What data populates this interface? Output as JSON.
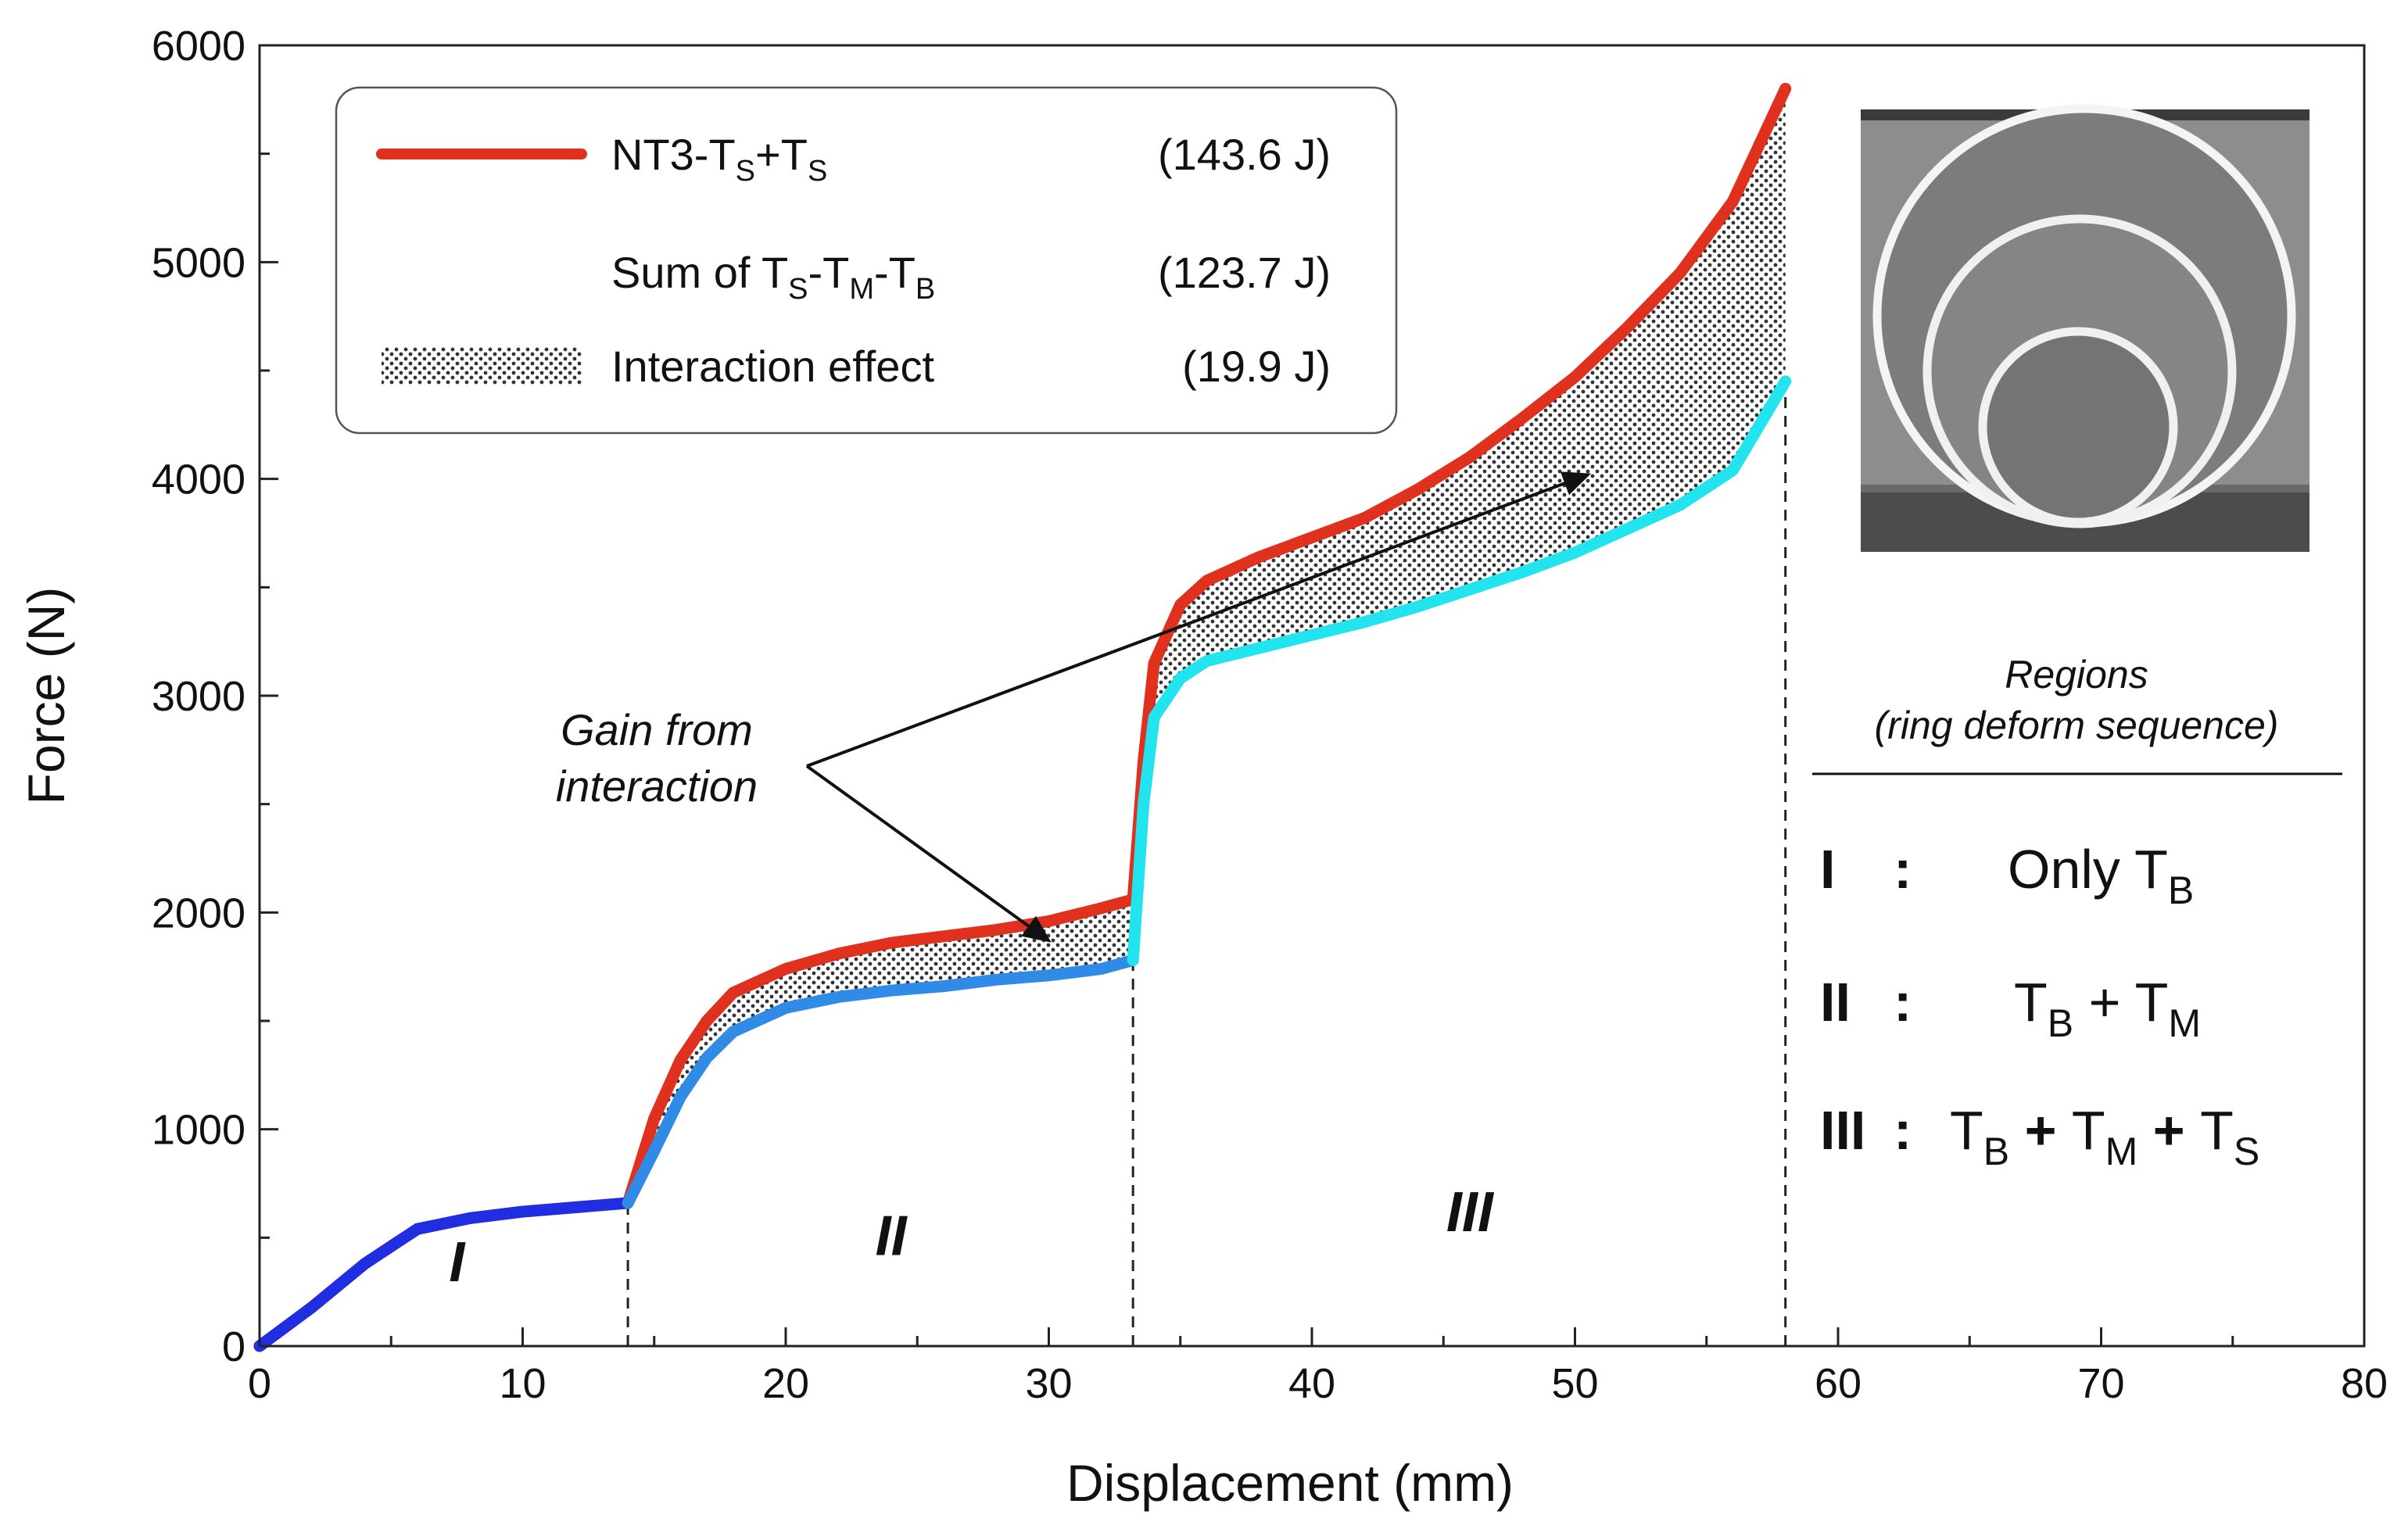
{
  "chart_data": {
    "type": "line",
    "xlabel": "Displacement (mm)",
    "ylabel": "Force (N)",
    "xlim": [
      0,
      80
    ],
    "ylim": [
      0,
      6000
    ],
    "x_ticks": [
      0,
      10,
      20,
      30,
      40,
      50,
      60,
      70,
      80
    ],
    "y_ticks": [
      0,
      1000,
      2000,
      3000,
      4000,
      5000,
      6000
    ],
    "grid": false,
    "legend_position": "top-left",
    "legend": [
      {
        "key": "nt3",
        "name_main": "NT3-T",
        "name_sub1": "S",
        "name_mid": "+T",
        "name_sub2": "S",
        "energy": "(143.6 J)"
      },
      {
        "key": "sum",
        "name_main": "Sum of T",
        "name_sub1": "S",
        "name_mid1": "-T",
        "name_sub2": "M",
        "name_mid2": "-T",
        "name_sub3": "B",
        "energy": "(123.7 J)"
      },
      {
        "key": "interaction",
        "name": "Interaction effect",
        "energy": "(19.9 J)"
      }
    ],
    "colors": {
      "nt3": "#e0301e",
      "sum_region1": "#1f2ee0",
      "sum_region2": "#2f8be6",
      "sum_region3": "#22e4ee",
      "fill": "#9a9a9a"
    },
    "series": [
      {
        "name": "NT3-TS+TS",
        "color": "#e0301e",
        "points": [
          [
            0,
            0
          ],
          [
            2,
            180
          ],
          [
            4,
            380
          ],
          [
            6,
            540
          ],
          [
            8,
            590
          ],
          [
            10,
            620
          ],
          [
            12,
            640
          ],
          [
            14,
            660
          ],
          [
            15,
            1050
          ],
          [
            16,
            1320
          ],
          [
            17,
            1500
          ],
          [
            18,
            1630
          ],
          [
            20,
            1740
          ],
          [
            22,
            1810
          ],
          [
            24,
            1860
          ],
          [
            26,
            1890
          ],
          [
            28,
            1920
          ],
          [
            30,
            1960
          ],
          [
            32,
            2020
          ],
          [
            33.2,
            2060
          ],
          [
            33.6,
            2700
          ],
          [
            34,
            3150
          ],
          [
            35,
            3420
          ],
          [
            36,
            3530
          ],
          [
            38,
            3640
          ],
          [
            40,
            3730
          ],
          [
            42,
            3820
          ],
          [
            44,
            3950
          ],
          [
            46,
            4100
          ],
          [
            48,
            4280
          ],
          [
            50,
            4470
          ],
          [
            52,
            4700
          ],
          [
            54,
            4950
          ],
          [
            56,
            5280
          ],
          [
            58,
            5800
          ]
        ]
      },
      {
        "name": "Sum of TS-TM-TB",
        "points": [
          [
            0,
            0
          ],
          [
            2,
            180
          ],
          [
            4,
            380
          ],
          [
            6,
            540
          ],
          [
            8,
            590
          ],
          [
            10,
            620
          ],
          [
            12,
            640
          ],
          [
            14,
            660
          ],
          [
            15,
            900
          ],
          [
            16,
            1150
          ],
          [
            17,
            1330
          ],
          [
            18,
            1450
          ],
          [
            20,
            1560
          ],
          [
            22,
            1610
          ],
          [
            24,
            1640
          ],
          [
            26,
            1660
          ],
          [
            28,
            1690
          ],
          [
            30,
            1710
          ],
          [
            32,
            1740
          ],
          [
            33.2,
            1780
          ],
          [
            33.6,
            2500
          ],
          [
            34,
            2900
          ],
          [
            35,
            3080
          ],
          [
            36,
            3160
          ],
          [
            38,
            3220
          ],
          [
            40,
            3280
          ],
          [
            42,
            3340
          ],
          [
            44,
            3410
          ],
          [
            46,
            3490
          ],
          [
            48,
            3570
          ],
          [
            50,
            3660
          ],
          [
            52,
            3770
          ],
          [
            54,
            3880
          ],
          [
            56,
            4040
          ],
          [
            58,
            4450
          ]
        ]
      }
    ],
    "region_boundaries": [
      14,
      33.2,
      58
    ],
    "region_labels": [
      {
        "label": "I",
        "x": 7.5,
        "y": 300
      },
      {
        "label": "II",
        "x": 24,
        "y": 420
      },
      {
        "label": "III",
        "x": 46,
        "y": 530
      }
    ],
    "annotation": {
      "line1": "Gain from",
      "line2": "interaction",
      "arrow_targets": [
        [
          50.5,
          4020
        ],
        [
          30,
          1870
        ]
      ]
    },
    "regions_panel": {
      "title1": "Regions",
      "title2": "(ring deform sequence)",
      "rows": [
        {
          "num": "I",
          "colon": ":",
          "parts": [
            {
              "t": "Only T"
            },
            {
              "sub": "B"
            }
          ]
        },
        {
          "num": "II",
          "colon": ":",
          "parts": [
            {
              "t": "T"
            },
            {
              "sub": "B"
            },
            {
              "t": " + T"
            },
            {
              "sub": "M"
            }
          ]
        },
        {
          "num": "III",
          "colon": ":",
          "parts": [
            {
              "t": "T"
            },
            {
              "sub": "B"
            },
            {
              "b": " + "
            },
            {
              "t": "T"
            },
            {
              "sub": "M"
            },
            {
              "b": " + "
            },
            {
              "t": "T"
            },
            {
              "sub": "S"
            }
          ]
        }
      ]
    }
  }
}
